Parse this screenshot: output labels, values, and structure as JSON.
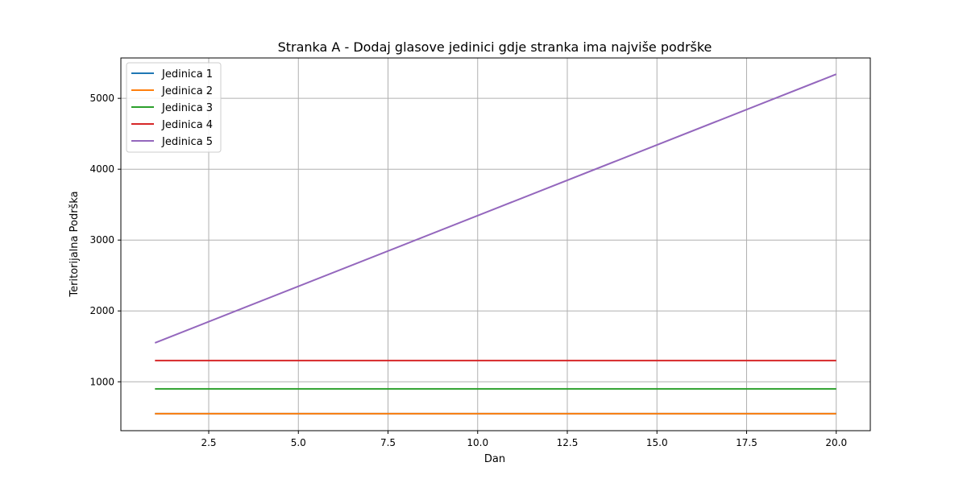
{
  "chart_data": {
    "type": "line",
    "title": "Stranka A - Dodaj glasove jedinici gdje stranka ima najviše podrške",
    "xlabel": "Dan",
    "ylabel": "Teritorijalna Podrška",
    "xlim": [
      0.05,
      20.95
    ],
    "ylim": [
      310,
      5570
    ],
    "xticks": [
      2.5,
      5.0,
      7.5,
      10.0,
      12.5,
      15.0,
      17.5,
      20.0
    ],
    "xtick_labels": [
      "2.5",
      "5.0",
      "7.5",
      "10.0",
      "12.5",
      "15.0",
      "17.5",
      "20.0"
    ],
    "yticks": [
      1000,
      2000,
      3000,
      4000,
      5000
    ],
    "ytick_labels": [
      "1000",
      "2000",
      "3000",
      "4000",
      "5000"
    ],
    "grid": true,
    "legend_position": "top-left",
    "x": [
      1,
      20
    ],
    "series": [
      {
        "name": "Jedinica 1",
        "color": "#1f77b4",
        "values": [
          550,
          550
        ]
      },
      {
        "name": "Jedinica 2",
        "color": "#ff7f0e",
        "values": [
          550,
          550
        ]
      },
      {
        "name": "Jedinica 3",
        "color": "#2ca02c",
        "values": [
          900,
          900
        ]
      },
      {
        "name": "Jedinica 4",
        "color": "#d62728",
        "values": [
          1300,
          1300
        ]
      },
      {
        "name": "Jedinica 5",
        "color": "#9467bd",
        "values": [
          1550,
          5340
        ]
      }
    ]
  }
}
